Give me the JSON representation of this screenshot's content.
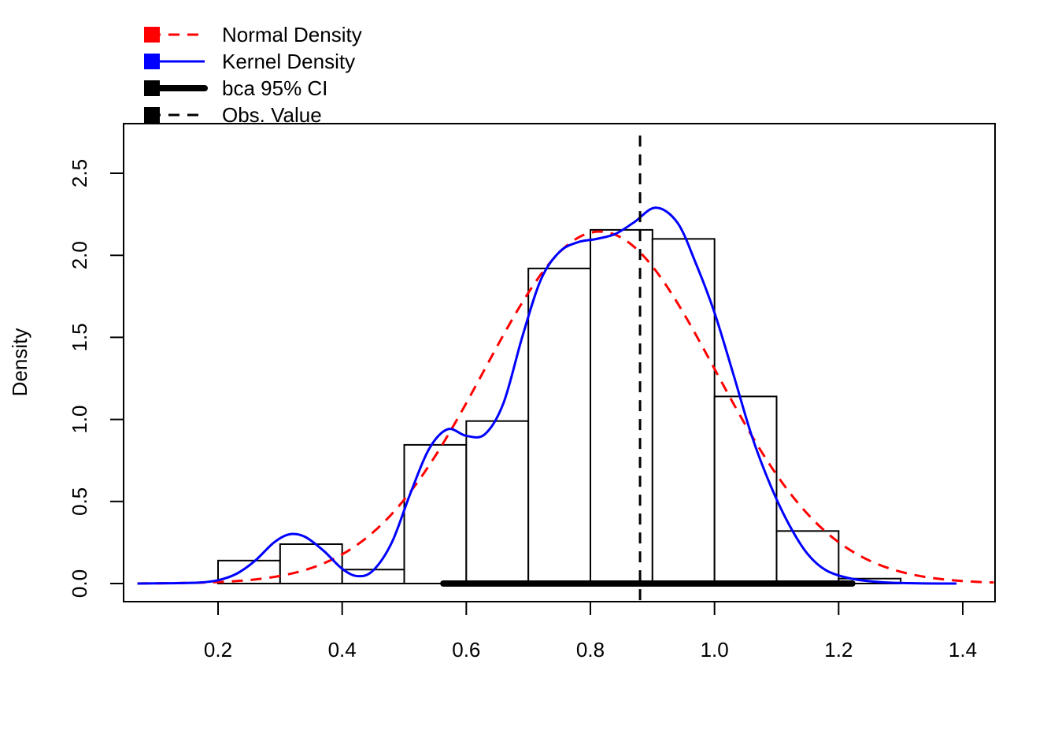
{
  "chart_data": {
    "type": "histogram",
    "title": "",
    "xlabel": "",
    "ylabel": "Density",
    "xlim": [
      0.07,
      1.45
    ],
    "ylim": [
      -0.1,
      2.9
    ],
    "x_ticks": [
      0.2,
      0.4,
      0.6,
      0.8,
      1.0,
      1.2,
      1.4
    ],
    "x_tick_labels": [
      "0.2",
      "0.4",
      "0.6",
      "0.8",
      "1.0",
      "1.2",
      "1.4"
    ],
    "y_ticks": [
      0.0,
      0.5,
      1.0,
      1.5,
      2.0,
      2.5
    ],
    "y_tick_labels": [
      "0.0",
      "0.5",
      "1.0",
      "1.5",
      "2.0",
      "2.5"
    ],
    "bins": [
      {
        "start": 0.2,
        "end": 0.3,
        "density": 0.14
      },
      {
        "start": 0.3,
        "end": 0.4,
        "density": 0.24
      },
      {
        "start": 0.4,
        "end": 0.5,
        "density": 0.085
      },
      {
        "start": 0.5,
        "end": 0.6,
        "density": 0.845
      },
      {
        "start": 0.6,
        "end": 0.7,
        "density": 0.99
      },
      {
        "start": 0.7,
        "end": 0.8,
        "density": 1.92
      },
      {
        "start": 0.8,
        "end": 0.9,
        "density": 2.155
      },
      {
        "start": 0.9,
        "end": 1.0,
        "density": 2.1
      },
      {
        "start": 1.0,
        "end": 1.1,
        "density": 1.14
      },
      {
        "start": 1.1,
        "end": 1.2,
        "density": 0.32
      },
      {
        "start": 1.2,
        "end": 1.3,
        "density": 0.03
      }
    ],
    "normal_density": {
      "name": "Normal Density",
      "color": "#ff0000",
      "dash": "dashed",
      "mean": 0.815,
      "sd": 0.186,
      "x_range": [
        0.07,
        1.45
      ]
    },
    "kernel_density": {
      "name": "Kernel Density",
      "color": "#0000ff",
      "points": [
        [
          0.07,
          0.0
        ],
        [
          0.12,
          0.002
        ],
        [
          0.17,
          0.006
        ],
        [
          0.2,
          0.02
        ],
        [
          0.23,
          0.06
        ],
        [
          0.26,
          0.14
        ],
        [
          0.29,
          0.25
        ],
        [
          0.315,
          0.3
        ],
        [
          0.34,
          0.285
        ],
        [
          0.37,
          0.2
        ],
        [
          0.4,
          0.09
        ],
        [
          0.425,
          0.045
        ],
        [
          0.45,
          0.08
        ],
        [
          0.48,
          0.25
        ],
        [
          0.51,
          0.55
        ],
        [
          0.54,
          0.82
        ],
        [
          0.57,
          0.94
        ],
        [
          0.6,
          0.9
        ],
        [
          0.63,
          0.91
        ],
        [
          0.66,
          1.1
        ],
        [
          0.69,
          1.5
        ],
        [
          0.72,
          1.85
        ],
        [
          0.75,
          2.02
        ],
        [
          0.78,
          2.08
        ],
        [
          0.81,
          2.1
        ],
        [
          0.84,
          2.13
        ],
        [
          0.87,
          2.2
        ],
        [
          0.905,
          2.29
        ],
        [
          0.94,
          2.2
        ],
        [
          0.97,
          1.95
        ],
        [
          1.0,
          1.65
        ],
        [
          1.03,
          1.28
        ],
        [
          1.06,
          0.9
        ],
        [
          1.09,
          0.6
        ],
        [
          1.12,
          0.36
        ],
        [
          1.15,
          0.18
        ],
        [
          1.18,
          0.08
        ],
        [
          1.22,
          0.03
        ],
        [
          1.27,
          0.008
        ],
        [
          1.33,
          0.001
        ],
        [
          1.39,
          0.0
        ]
      ]
    },
    "ci": {
      "name": "bca 95% CI",
      "color": "#000000",
      "lower": 0.563,
      "upper": 1.222,
      "y": 0.0
    },
    "observed": {
      "name": "Obs. Value",
      "color": "#000000",
      "x": 0.88,
      "y_top": 2.73
    },
    "legend_position": "top-left"
  }
}
